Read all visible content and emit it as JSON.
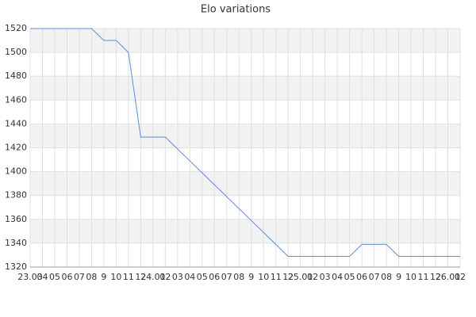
{
  "chart_data": {
    "type": "line",
    "title": "Elo variations",
    "categories": [
      "23.03",
      "04",
      "05",
      "06",
      "07",
      "08",
      "9",
      "10",
      "11",
      "12",
      "24.01",
      "02",
      "03",
      "04",
      "05",
      "06",
      "07",
      "08",
      "9",
      "10",
      "11",
      "12",
      "25.01",
      "02",
      "03",
      "04",
      "05",
      "06",
      "07",
      "08",
      "9",
      "10",
      "11",
      "12",
      "26.01",
      "02"
    ],
    "values": [
      1520,
      1520,
      1520,
      1520,
      1520,
      1520,
      1510,
      1510,
      1500,
      1429,
      1429,
      1429,
      1419,
      1409,
      1399,
      1389,
      1379,
      1369,
      1359,
      1349,
      1339,
      1329,
      1329,
      1329,
      1329,
      1329,
      1329,
      1339,
      1339,
      1339,
      1329,
      1329,
      1329,
      1329,
      1329,
      1329
    ],
    "color": "#5b8fd8",
    "ylim": [
      1320,
      1520
    ],
    "yticks": [
      1320,
      1340,
      1360,
      1380,
      1400,
      1420,
      1440,
      1460,
      1480,
      1500,
      1520
    ],
    "grid": true
  }
}
